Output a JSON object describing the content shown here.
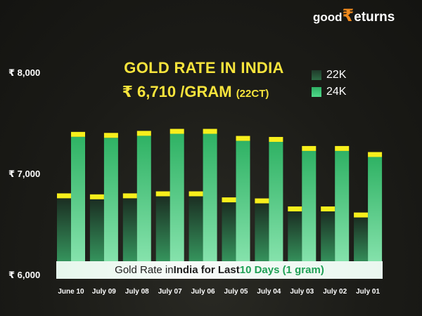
{
  "brand": {
    "good": "good",
    "symbol": "₹",
    "rest": "eturns"
  },
  "header": {
    "title": "GOLD RATE IN INDIA",
    "price": "₹ 6,710 /GRAM",
    "purity": "(22CT)"
  },
  "banner": {
    "part1": "Gold Rate in ",
    "part2": "India for Last ",
    "part3": "10 Days (1 gram)"
  },
  "chart_data": {
    "type": "bar",
    "title": "GOLD RATE IN INDIA",
    "xlabel": "",
    "ylabel": "",
    "categories": [
      "June 10",
      "July 09",
      "July 08",
      "July 07",
      "July 06",
      "July 05",
      "July 04",
      "July 03",
      "July 02",
      "July 01"
    ],
    "series": [
      {
        "name": "22K",
        "values": [
          6750,
          6740,
          6750,
          6770,
          6770,
          6710,
          6700,
          6620,
          6620,
          6560
        ]
      },
      {
        "name": "24K",
        "values": [
          7360,
          7350,
          7370,
          7390,
          7390,
          7320,
          7310,
          7220,
          7220,
          7160
        ]
      }
    ],
    "ylim": [
      6000,
      8000
    ],
    "yticks": [
      "₹ 6,000",
      "₹ 7,000",
      "₹ 8,000"
    ],
    "legend_position": "top-right",
    "colors": {
      "22K": "#2d6b45",
      "24K": "#3cc777",
      "cap": "#f7ef1c"
    }
  }
}
